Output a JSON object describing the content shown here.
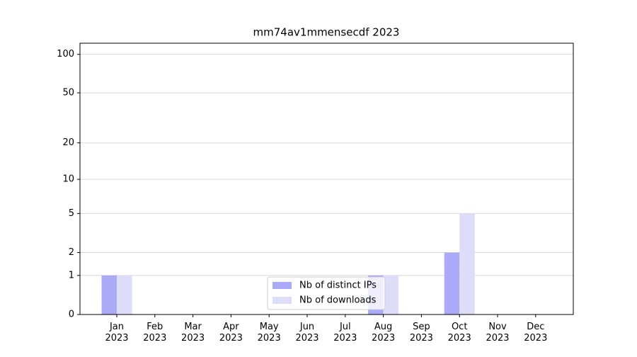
{
  "chart_data": {
    "type": "bar",
    "title": "mm74av1mmensecdf 2023",
    "categories": [
      "Jan\n2023",
      "Feb\n2023",
      "Mar\n2023",
      "Apr\n2023",
      "May\n2023",
      "Jun\n2023",
      "Jul\n2023",
      "Aug\n2023",
      "Sep\n2023",
      "Oct\n2023",
      "Nov\n2023",
      "Dec\n2023"
    ],
    "series": [
      {
        "name": "Nb of distinct IPs",
        "color": "#aaaaf8",
        "values": [
          1,
          0,
          0,
          0,
          0,
          0,
          0,
          1,
          0,
          2,
          0,
          0
        ]
      },
      {
        "name": "Nb of downloads",
        "color": "#ddddfa",
        "values": [
          1,
          0,
          0,
          0,
          0,
          0,
          0,
          1,
          0,
          5,
          0,
          0
        ]
      }
    ],
    "scale": "log1p",
    "ylim": [
      0,
      122
    ],
    "yticks": [
      0,
      1,
      2,
      5,
      10,
      20,
      50,
      100
    ],
    "grid": true,
    "legend": "lower center"
  }
}
